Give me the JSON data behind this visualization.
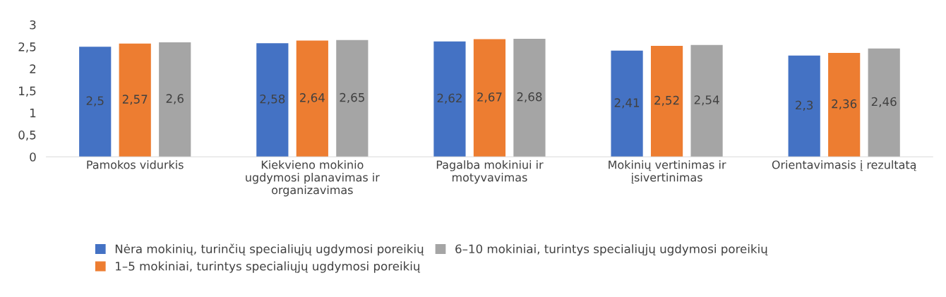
{
  "chart_data": {
    "type": "bar",
    "categories": [
      "Pamokos vidurkis",
      "Kiekvieno mokinio\nugdymosi planavimas ir\norganizavimas",
      "Pagalba mokiniui ir\nmotyvavimas",
      "Mokinių vertinimas ir\nįsivertinimas",
      "Orientavimasis į rezultatą"
    ],
    "series": [
      {
        "name": "Nėra mokinių, turinčių specialiųjų ugdymosi poreikių",
        "color": "#4472c4",
        "values": [
          2.5,
          2.58,
          2.62,
          2.41,
          2.3
        ],
        "value_labels": [
          "2,5",
          "2,58",
          "2,62",
          "2,41",
          "2,3"
        ]
      },
      {
        "name": "1–5 mokiniai, turintys specialiųjų ugdymosi poreikių",
        "color": "#ed7d31",
        "values": [
          2.57,
          2.64,
          2.67,
          2.52,
          2.36
        ],
        "value_labels": [
          "2,57",
          "2,64",
          "2,67",
          "2,52",
          "2,36"
        ]
      },
      {
        "name": "6–10 mokiniai, turintys specialiųjų ugdymosi poreikių",
        "color": "#a5a5a5",
        "values": [
          2.6,
          2.65,
          2.68,
          2.54,
          2.46
        ],
        "value_labels": [
          "2,6",
          "2,65",
          "2,68",
          "2,54",
          "2,46"
        ]
      }
    ],
    "ylim": [
      0,
      3
    ],
    "yticks": [
      0,
      {
        "value": 0.5,
        "label": "0,5"
      },
      1,
      {
        "value": 1.5,
        "label": "1,5"
      },
      2,
      {
        "value": 2.5,
        "label": "2,5"
      },
      3
    ],
    "grid": false,
    "legend": "bottom"
  }
}
